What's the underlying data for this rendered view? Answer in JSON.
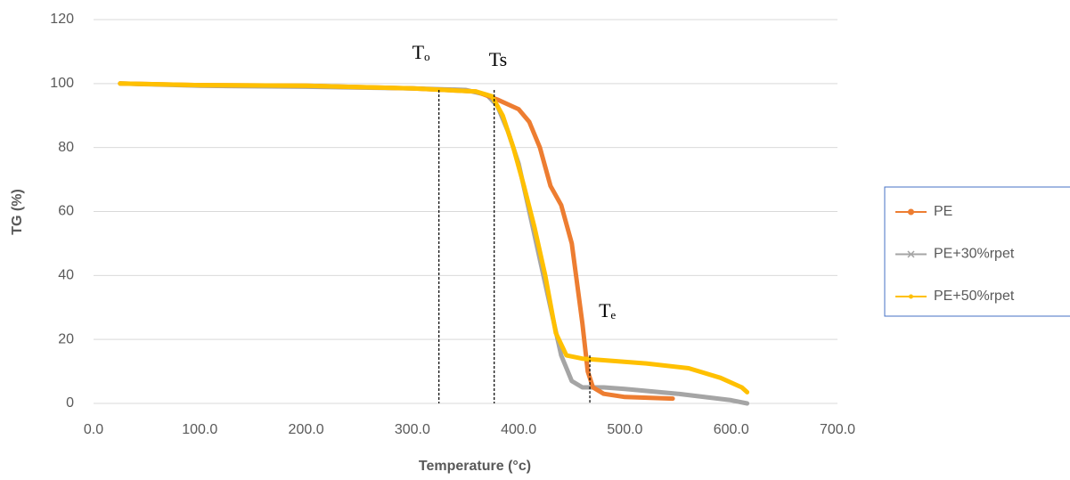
{
  "chart_data": {
    "type": "line",
    "x_label": "Temperature (°c)",
    "y_label": "TG (%)",
    "xlim": [
      0,
      700
    ],
    "xticks": [
      {
        "value": 0,
        "label": "0.0"
      },
      {
        "value": 100,
        "label": "100.0"
      },
      {
        "value": 200,
        "label": "200.0"
      },
      {
        "value": 300,
        "label": "300.0"
      },
      {
        "value": 400,
        "label": "400.0"
      },
      {
        "value": 500,
        "label": "500.0"
      },
      {
        "value": 600,
        "label": "600.0"
      },
      {
        "value": 700,
        "label": "700.0"
      }
    ],
    "ylim": [
      0,
      120
    ],
    "yticks": [
      0,
      20,
      40,
      60,
      80,
      100,
      120
    ],
    "grid": true,
    "legend": "right",
    "series": [
      {
        "name": "PE",
        "color": "#ED7D31",
        "marker": "circle",
        "x": [
          25,
          100,
          200,
          300,
          360,
          380,
          400,
          410,
          420,
          430,
          440,
          450,
          460,
          465,
          470,
          480,
          500,
          545
        ],
        "values": [
          100,
          99.5,
          99.3,
          98.5,
          97.5,
          95,
          92,
          88,
          80,
          68,
          62,
          50,
          25,
          10,
          5,
          3,
          2,
          1.5
        ]
      },
      {
        "name": "PE+30%rpet",
        "color": "#A5A5A5",
        "marker": "x",
        "x": [
          25,
          100,
          200,
          300,
          350,
          370,
          380,
          390,
          400,
          410,
          420,
          430,
          440,
          450,
          460,
          480,
          500,
          550,
          600,
          615
        ],
        "values": [
          100,
          99.3,
          99,
          98.5,
          98,
          96.5,
          93,
          85,
          75,
          60,
          45,
          30,
          15,
          7,
          5,
          5,
          4.5,
          3,
          1,
          0
        ]
      },
      {
        "name": "PE+50%rpet",
        "color": "#FFC000",
        "marker": "dot",
        "x": [
          25,
          100,
          200,
          300,
          360,
          375,
          385,
          395,
          405,
          415,
          425,
          435,
          445,
          460,
          480,
          520,
          560,
          590,
          610,
          615
        ],
        "values": [
          100,
          99.5,
          99.3,
          98.5,
          97.5,
          96,
          90,
          80,
          68,
          55,
          40,
          22,
          15,
          14,
          13.5,
          12.5,
          11,
          8,
          5,
          3.5
        ]
      }
    ],
    "annotations": [
      {
        "text": "Tₒ",
        "x": 325,
        "y": 98
      },
      {
        "text": "Ts",
        "x": 377,
        "y": 98
      },
      {
        "text": "Tₑ",
        "x": 467,
        "y": 15
      }
    ]
  }
}
